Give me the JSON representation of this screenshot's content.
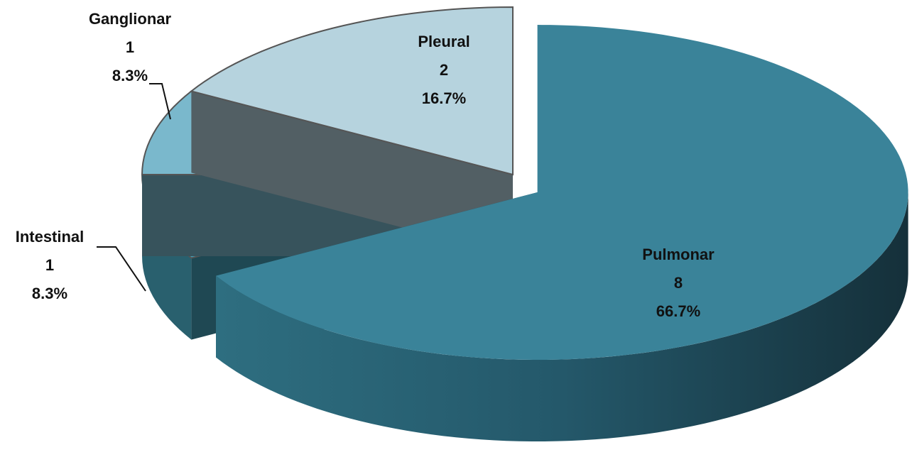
{
  "chart_data": {
    "type": "pie",
    "three_d": true,
    "categories": [
      "Pulmonar",
      "Intestinal",
      "Ganglionar",
      "Pleural"
    ],
    "values": [
      8,
      1,
      1,
      2
    ],
    "percentages": [
      66.7,
      8.3,
      8.3,
      16.7
    ],
    "percentage_labels": [
      "66.7%",
      "8.3%",
      "8.3%",
      "16.7%"
    ],
    "colors": [
      "#3a8399",
      "#44a0b8",
      "#7ab8cc",
      "#b6d3de"
    ],
    "exploded": [
      true,
      false,
      false,
      false
    ]
  }
}
